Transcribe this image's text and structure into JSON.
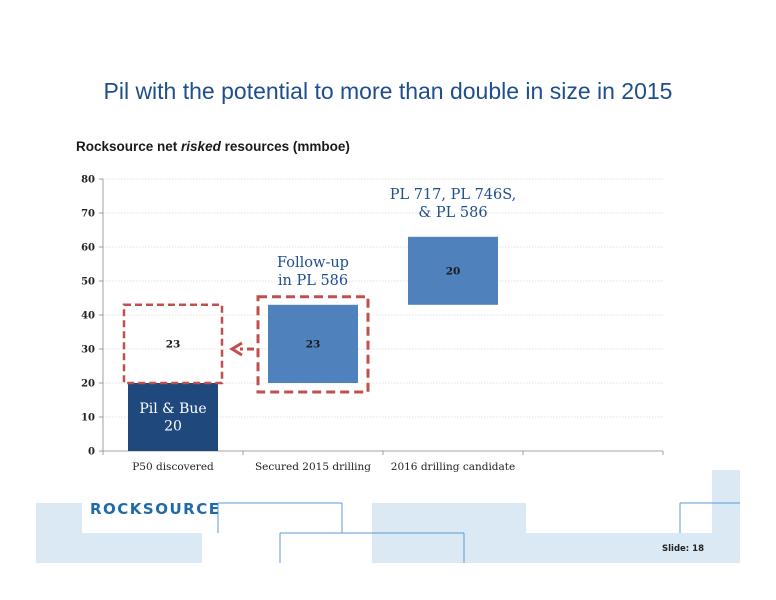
{
  "slide": {
    "title": "Pil with the potential to more than double in size in 2015",
    "subtitle_pre": "Rocksource net ",
    "subtitle_em": "risked",
    "subtitle_post": " resources (mmboe)",
    "logo": "ROCKSOURCE",
    "slide_number": "Slide: 18"
  },
  "colors": {
    "dark_bar": "#1f497d",
    "light_bar": "#4f81bd",
    "dashed": "#c0504d",
    "annotation": "#1f4e8c",
    "deco_fill": "#dbe9f5",
    "deco_line": "#5b9bd5"
  },
  "chart_data": {
    "type": "bar",
    "subtype": "waterfall",
    "categories": [
      "P50 discovered",
      "Secured 2015 drilling",
      "2016 drilling candidate"
    ],
    "ylim": [
      0,
      80
    ],
    "yticks": [
      0,
      10,
      20,
      30,
      40,
      50,
      60,
      70,
      80
    ],
    "grid": true,
    "bars": [
      {
        "category": "P50 discovered",
        "base": 0,
        "value": 20,
        "label": "Pil & Bue\n20",
        "style": "dark"
      },
      {
        "category": "P50 discovered",
        "base": 20,
        "value": 23,
        "label": "23",
        "style": "dashed-outline"
      },
      {
        "category": "Secured 2015 drilling",
        "base": 20,
        "value": 23,
        "label": "23",
        "style": "light"
      },
      {
        "category": "2016 drilling candidate",
        "base": 43,
        "value": 20,
        "label": "20",
        "style": "light"
      }
    ],
    "annotations": [
      {
        "text": "Follow-up\nin PL 586",
        "category": "Secured 2015 drilling"
      },
      {
        "text": "PL 717, PL 746S,\n& PL 586",
        "category": "2016 drilling candidate"
      }
    ],
    "arrow": {
      "from": "Secured 2015 drilling",
      "to": "P50 discovered"
    }
  }
}
